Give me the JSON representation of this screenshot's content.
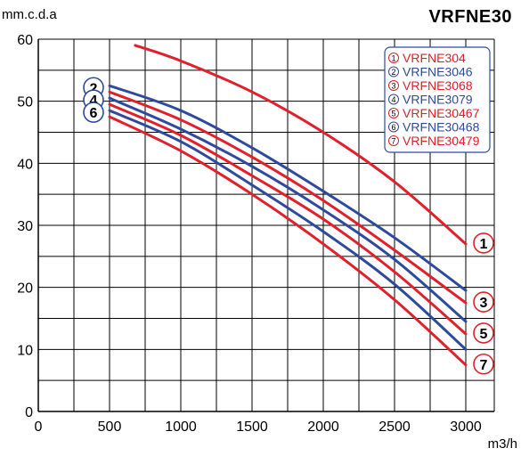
{
  "chart_data": {
    "type": "line",
    "title": "VRFNE30",
    "ylabel": "mm.c.d.a",
    "xlabel": "m3/h",
    "xlim": [
      0,
      3000
    ],
    "ylim": [
      0,
      60
    ],
    "x_ticks": [
      "0",
      "500",
      "1000",
      "1500",
      "2000",
      "2500",
      "3000"
    ],
    "y_ticks": [
      "0",
      "10",
      "20",
      "30",
      "40",
      "50",
      "60"
    ],
    "grid": true,
    "legend_position": "top-right",
    "series": [
      {
        "marker": "1",
        "name": "VRFNE304",
        "color": "#e0202a",
        "x": [
          680,
          1000,
          1500,
          2000,
          2500,
          3000
        ],
        "y": [
          59,
          56.5,
          51.5,
          45,
          37,
          27
        ]
      },
      {
        "marker": "2",
        "name": "VRFNE3046",
        "color": "#2e4a9c",
        "x": [
          500,
          1000,
          1500,
          2000,
          2500,
          3000
        ],
        "y": [
          52.5,
          48.5,
          42.5,
          35.5,
          28,
          19.5
        ]
      },
      {
        "marker": "3",
        "name": "VRFNE3068",
        "color": "#e0202a",
        "x": [
          500,
          1000,
          1500,
          2000,
          2500,
          3000
        ],
        "y": [
          51.5,
          47,
          41,
          34,
          26,
          17.5
        ]
      },
      {
        "marker": "4",
        "name": "VRFNE3079",
        "color": "#2e4a9c",
        "x": [
          500,
          1000,
          1500,
          2000,
          2500,
          3000
        ],
        "y": [
          50.5,
          45.5,
          39.5,
          32.5,
          24.5,
          14.5
        ]
      },
      {
        "marker": "5",
        "name": "VRFNE30467",
        "color": "#e0202a",
        "x": [
          500,
          1000,
          1500,
          2000,
          2500,
          3000
        ],
        "y": [
          49.5,
          44.5,
          38,
          31,
          22.5,
          12.5
        ]
      },
      {
        "marker": "6",
        "name": "VRFNE30468",
        "color": "#2e4a9c",
        "x": [
          500,
          1000,
          1500,
          2000,
          2500,
          3000
        ],
        "y": [
          48.5,
          43.5,
          36.5,
          29,
          20.5,
          10
        ]
      },
      {
        "marker": "7",
        "name": "VRFNE30479",
        "color": "#e0202a",
        "x": [
          500,
          1000,
          1500,
          2000,
          2500,
          3000
        ],
        "y": [
          47.5,
          42,
          35,
          27,
          18,
          7.5
        ]
      }
    ],
    "curve_markers_left": [
      "2",
      "4",
      "6"
    ],
    "curve_markers_right": [
      "1",
      "3",
      "5",
      "7"
    ]
  }
}
